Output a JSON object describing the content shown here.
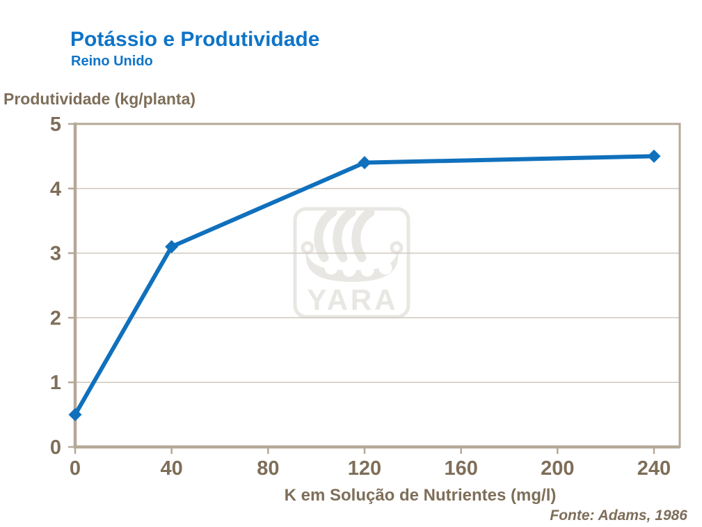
{
  "header": {
    "title": "Potássio e Produtividade",
    "subtitle": "Reino Unido"
  },
  "watermark": {
    "brand": "YARA"
  },
  "chart_data": {
    "type": "line",
    "title": "Potássio e Produtividade",
    "subtitle": "Reino Unido",
    "xlabel": "K em Solução de Nutrientes (mg/l)",
    "ylabel": "Produtividade (kg/planta)",
    "source": "Fonte: Adams, 1986",
    "series": [
      {
        "name": "Produtividade",
        "x": [
          0,
          40,
          120,
          240
        ],
        "y": [
          0.5,
          3.1,
          4.4,
          4.5
        ]
      }
    ],
    "xticks": [
      0,
      40,
      80,
      120,
      160,
      200,
      240
    ],
    "yticks": [
      0,
      1,
      2,
      3,
      4,
      5
    ],
    "xlim": [
      0,
      240
    ],
    "ylim": [
      0,
      5
    ],
    "grid": true,
    "legend": "none",
    "marker": "diamond",
    "colors": {
      "title": "#0e74c8",
      "line": "#1070bc",
      "axis_text": "#7e6e59",
      "frame": "#b5a898",
      "gridline": "#cfc8bc",
      "watermark": "#e9e7e3",
      "background": "#ffffff"
    }
  }
}
